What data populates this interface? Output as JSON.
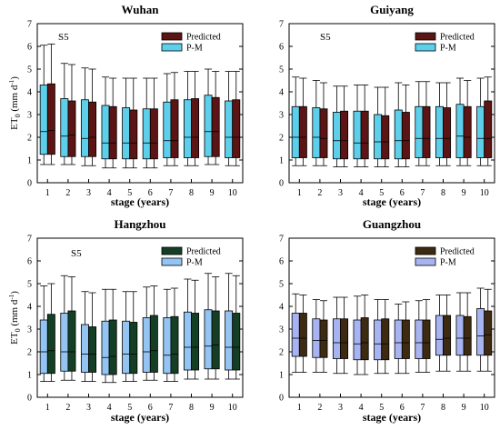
{
  "chart_data": [
    {
      "type": "box",
      "title": "Wuhan",
      "annotation": "S5",
      "xlabel": "stage (years)",
      "ylabel": "ET0 (mm d-1)",
      "ylim": [
        0,
        7
      ],
      "yticks": [
        0,
        1,
        2,
        3,
        4,
        5,
        6,
        7
      ],
      "categories": [
        "1",
        "2",
        "3",
        "4",
        "5",
        "6",
        "7",
        "8",
        "9",
        "10"
      ],
      "legend": {
        "position": "top-right",
        "entries": [
          "Predicted",
          "P-M"
        ]
      },
      "series": [
        {
          "name": "P-M",
          "color": "#5ecfea",
          "whisker_low": [
            0.8,
            0.8,
            0.75,
            0.65,
            0.65,
            0.65,
            0.75,
            0.75,
            0.8,
            0.75
          ],
          "q1": [
            1.25,
            1.15,
            1.15,
            1.05,
            1.05,
            1.05,
            1.1,
            1.1,
            1.15,
            1.1
          ],
          "median": [
            2.25,
            2.05,
            1.95,
            1.75,
            1.75,
            1.75,
            1.85,
            2.0,
            2.25,
            2.0
          ],
          "q3": [
            4.3,
            3.7,
            3.65,
            3.4,
            3.3,
            3.25,
            3.55,
            3.65,
            3.85,
            3.6
          ],
          "whisker_high": [
            6.05,
            5.25,
            5.05,
            4.65,
            4.6,
            4.6,
            4.8,
            4.9,
            5.0,
            4.9
          ]
        },
        {
          "name": "Predicted",
          "color": "#5c1414",
          "whisker_low": [
            0.8,
            0.8,
            0.75,
            0.65,
            0.65,
            0.65,
            0.75,
            0.75,
            0.8,
            0.75
          ],
          "q1": [
            1.25,
            1.15,
            1.15,
            1.05,
            1.05,
            1.05,
            1.1,
            1.1,
            1.15,
            1.1
          ],
          "median": [
            2.3,
            2.1,
            2.0,
            1.75,
            1.75,
            1.75,
            1.85,
            2.0,
            2.25,
            2.0
          ],
          "q3": [
            4.35,
            3.6,
            3.55,
            3.35,
            3.2,
            3.25,
            3.65,
            3.7,
            3.75,
            3.65
          ],
          "whisker_high": [
            6.1,
            5.2,
            5.0,
            4.6,
            4.6,
            4.6,
            4.85,
            4.9,
            4.9,
            4.9
          ]
        }
      ]
    },
    {
      "type": "box",
      "title": "Guiyang",
      "annotation": "S5",
      "xlabel": "stage (years)",
      "ylabel": "",
      "ylim": [
        0,
        7
      ],
      "yticks": [
        0,
        1,
        2,
        3,
        4,
        5,
        6,
        7
      ],
      "categories": [
        "1",
        "2",
        "3",
        "4",
        "5",
        "6",
        "7",
        "8",
        "9",
        "10"
      ],
      "legend": {
        "position": "top-right",
        "entries": [
          "Predicted",
          "P-M"
        ]
      },
      "series": [
        {
          "name": "P-M",
          "color": "#5ecfea",
          "whisker_low": [
            0.75,
            0.75,
            0.7,
            0.7,
            0.7,
            0.7,
            0.75,
            0.75,
            0.75,
            0.75
          ],
          "q1": [
            1.1,
            1.1,
            1.05,
            1.05,
            1.05,
            1.05,
            1.1,
            1.1,
            1.1,
            1.1
          ],
          "median": [
            2.0,
            2.0,
            1.85,
            1.75,
            1.8,
            1.85,
            1.95,
            1.95,
            2.05,
            1.95
          ],
          "q3": [
            3.35,
            3.3,
            3.1,
            3.15,
            3.0,
            3.2,
            3.35,
            3.35,
            3.45,
            3.35
          ],
          "whisker_high": [
            4.65,
            4.5,
            4.25,
            4.3,
            4.2,
            4.4,
            4.45,
            4.4,
            4.6,
            4.6
          ]
        },
        {
          "name": "Predicted",
          "color": "#5c1414",
          "whisker_low": [
            0.75,
            0.75,
            0.7,
            0.7,
            0.7,
            0.7,
            0.75,
            0.75,
            0.75,
            0.75
          ],
          "q1": [
            1.1,
            1.1,
            1.05,
            1.05,
            1.05,
            1.05,
            1.1,
            1.1,
            1.1,
            1.1
          ],
          "median": [
            2.0,
            1.95,
            1.85,
            1.75,
            1.8,
            1.85,
            1.95,
            1.95,
            2.0,
            1.95
          ],
          "q3": [
            3.35,
            3.25,
            3.15,
            3.15,
            2.95,
            3.1,
            3.35,
            3.3,
            3.35,
            3.6
          ],
          "whisker_high": [
            4.6,
            4.4,
            4.25,
            4.3,
            4.2,
            4.3,
            4.45,
            4.4,
            4.5,
            4.65
          ]
        }
      ]
    },
    {
      "type": "box",
      "title": "Hangzhou",
      "annotation": "S5",
      "xlabel": "stage (years)",
      "ylabel": "ET0 (mm d-1)",
      "ylim": [
        0,
        7
      ],
      "yticks": [
        0,
        1,
        2,
        3,
        4,
        5,
        6,
        7
      ],
      "categories": [
        "1",
        "2",
        "3",
        "4",
        "5",
        "6",
        "7",
        "8",
        "9",
        "10"
      ],
      "legend": {
        "position": "top-right",
        "entries": [
          "Predicted",
          "P-M"
        ]
      },
      "series": [
        {
          "name": "P-M",
          "color": "#93c4f2",
          "whisker_low": [
            0.7,
            0.75,
            0.7,
            0.65,
            0.7,
            0.75,
            0.7,
            0.8,
            0.8,
            0.8
          ],
          "q1": [
            1.05,
            1.15,
            1.1,
            1.0,
            1.05,
            1.1,
            1.05,
            1.2,
            1.25,
            1.2
          ],
          "median": [
            2.0,
            2.0,
            1.9,
            1.75,
            1.9,
            2.0,
            1.85,
            2.2,
            2.25,
            2.2
          ],
          "q3": [
            3.4,
            3.7,
            3.2,
            3.35,
            3.35,
            3.5,
            3.5,
            3.75,
            3.85,
            3.8
          ],
          "whisker_high": [
            4.9,
            5.35,
            4.65,
            4.75,
            4.65,
            4.85,
            4.75,
            5.2,
            5.45,
            5.45
          ]
        },
        {
          "name": "Predicted",
          "color": "#153f25",
          "whisker_low": [
            0.7,
            0.75,
            0.7,
            0.65,
            0.7,
            0.75,
            0.7,
            0.8,
            0.8,
            0.8
          ],
          "q1": [
            1.05,
            1.15,
            1.1,
            1.0,
            1.05,
            1.1,
            1.05,
            1.2,
            1.25,
            1.2
          ],
          "median": [
            2.05,
            2.0,
            1.9,
            1.8,
            1.9,
            2.05,
            1.9,
            2.2,
            2.3,
            2.2
          ],
          "q3": [
            3.65,
            3.8,
            3.1,
            3.4,
            3.3,
            3.6,
            3.55,
            3.7,
            3.8,
            3.7
          ],
          "whisker_high": [
            5.0,
            5.3,
            4.6,
            4.75,
            4.65,
            4.9,
            4.8,
            5.15,
            5.3,
            5.35
          ]
        }
      ]
    },
    {
      "type": "box",
      "title": "Guangzhou",
      "annotation": "",
      "xlabel": "stage (years)",
      "ylabel": "",
      "ylim": [
        0,
        7
      ],
      "yticks": [
        0,
        1,
        2,
        3,
        4,
        5,
        6,
        7
      ],
      "categories": [
        "1",
        "2",
        "3",
        "4",
        "5",
        "6",
        "7",
        "8",
        "9",
        "10"
      ],
      "legend": {
        "position": "top-right",
        "entries": [
          "Predicted",
          "P-M"
        ]
      },
      "series": [
        {
          "name": "P-M",
          "color": "#a8b4f2",
          "whisker_low": [
            1.1,
            1.1,
            1.05,
            1.0,
            1.05,
            1.05,
            1.1,
            1.15,
            1.15,
            1.15
          ],
          "q1": [
            1.8,
            1.75,
            1.7,
            1.65,
            1.65,
            1.7,
            1.7,
            1.85,
            1.85,
            1.85
          ],
          "median": [
            2.6,
            2.5,
            2.4,
            2.35,
            2.35,
            2.4,
            2.4,
            2.55,
            2.6,
            2.7
          ],
          "q3": [
            3.7,
            3.45,
            3.45,
            3.4,
            3.4,
            3.4,
            3.4,
            3.6,
            3.6,
            3.9
          ],
          "whisker_high": [
            4.55,
            4.3,
            4.4,
            4.45,
            4.3,
            4.1,
            4.25,
            4.5,
            4.6,
            4.8
          ]
        },
        {
          "name": "Predicted",
          "color": "#3d2a10",
          "whisker_low": [
            1.1,
            1.1,
            1.05,
            1.0,
            1.05,
            1.05,
            1.1,
            1.15,
            1.15,
            1.15
          ],
          "q1": [
            1.8,
            1.75,
            1.7,
            1.65,
            1.65,
            1.7,
            1.7,
            1.85,
            1.85,
            1.85
          ],
          "median": [
            2.6,
            2.5,
            2.4,
            2.4,
            2.35,
            2.4,
            2.4,
            2.6,
            2.6,
            2.75
          ],
          "q3": [
            3.7,
            3.4,
            3.45,
            3.5,
            3.45,
            3.4,
            3.4,
            3.6,
            3.55,
            3.8
          ],
          "whisker_high": [
            4.5,
            4.25,
            4.4,
            4.5,
            4.3,
            4.2,
            4.3,
            4.5,
            4.6,
            4.75
          ]
        }
      ]
    }
  ]
}
